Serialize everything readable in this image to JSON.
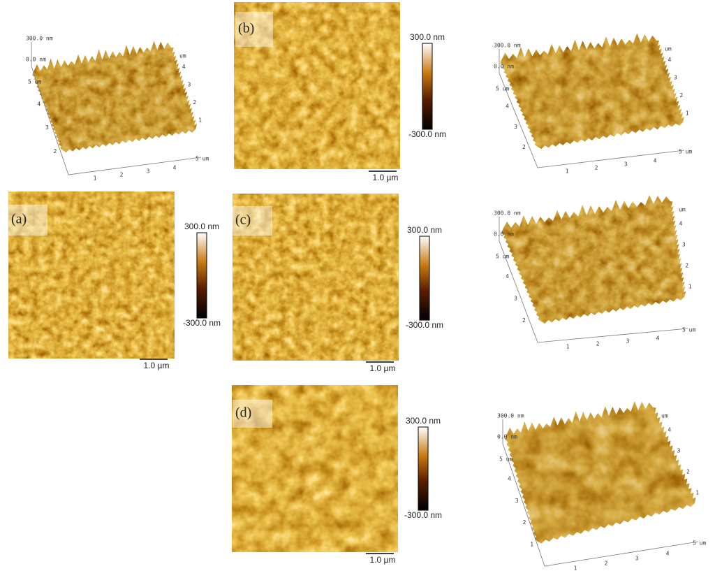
{
  "panels": [
    {
      "label": "(a)",
      "colorbar_max": "300.0 nm",
      "colorbar_min": "-300.0 nm",
      "scale_bar": "1.0 µm",
      "surface": {
        "z_top": "300.0 nm",
        "z_zero": "0.0 nm",
        "y_end": "5 um",
        "y_ticks": [
          "4",
          "3",
          "2"
        ],
        "x_ticks": [
          "1",
          "2",
          "3",
          "4"
        ],
        "x_end": "5 um",
        "right_unit": "um",
        "right_ticks": [
          "4",
          "3",
          "2",
          "1"
        ]
      }
    },
    {
      "label": "(b)",
      "colorbar_max": "300.0 nm",
      "colorbar_min": "-300.0 nm",
      "scale_bar": "1.0 µm",
      "surface": {
        "z_top": "300.0 nm",
        "z_zero": "0.0 nm",
        "y_end": "5 um",
        "y_ticks": [
          "4",
          "3",
          "2"
        ],
        "x_ticks": [
          "1",
          "2",
          "3",
          "4"
        ],
        "x_end": "5 um",
        "right_unit": "um",
        "right_ticks": [
          "4",
          "3",
          "2",
          "1"
        ]
      }
    },
    {
      "label": "(c)",
      "colorbar_max": "300.0 nm",
      "colorbar_min": "-300.0 nm",
      "scale_bar": "1.0 µm",
      "surface": {
        "z_top": "300.0 nm",
        "z_zero": "0.0 nm",
        "y_end": "5 um",
        "y_ticks": [
          "4",
          "3",
          "2"
        ],
        "x_ticks": [
          "1",
          "2",
          "3",
          "4"
        ],
        "x_end": "5 um",
        "right_unit": "um",
        "right_ticks": [
          "4",
          "3",
          "2",
          "1"
        ]
      }
    },
    {
      "label": "(d)",
      "colorbar_max": "300.0 nm",
      "colorbar_min": "-300.0 nm",
      "scale_bar": "1.0 µm",
      "surface": {
        "z_top": "300.0 nm",
        "z_zero": "0.0 nm",
        "y_end": "5 um",
        "y_ticks": [
          "4",
          "3",
          "2",
          "1"
        ],
        "x_ticks": [
          "1",
          "2",
          "3",
          "4"
        ],
        "x_end": "5 um",
        "right_unit": "um",
        "right_ticks": [
          "4",
          "3",
          "2",
          "1"
        ]
      }
    }
  ]
}
